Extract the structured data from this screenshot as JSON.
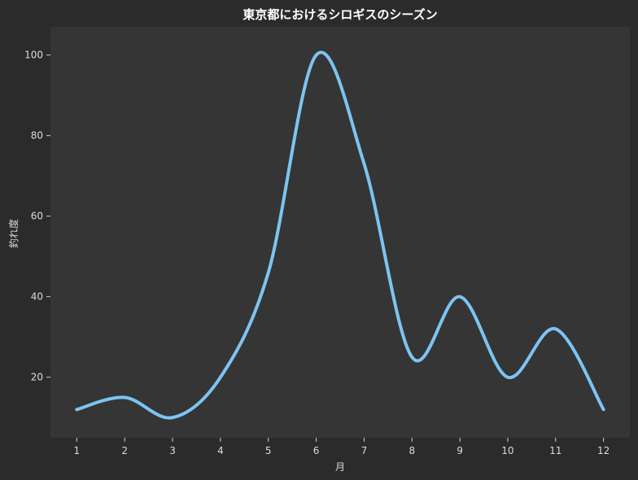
{
  "chart_data": {
    "type": "line",
    "title": "東京都におけるシロギスのシーズン",
    "xlabel": "月",
    "ylabel": "釣れ度",
    "x": [
      1,
      2,
      3,
      4,
      5,
      6,
      7,
      8,
      9,
      10,
      11,
      12
    ],
    "series": [
      {
        "values": [
          12,
          15,
          10,
          20,
          46,
          100,
          73,
          25,
          40,
          20,
          32,
          12
        ],
        "color": "#7cc4f2"
      }
    ],
    "xlim": [
      0.45,
      12.55
    ],
    "ylim": [
      5,
      107
    ],
    "yticks": [
      20,
      40,
      60,
      80,
      100
    ],
    "xticks": [
      1,
      2,
      3,
      4,
      5,
      6,
      7,
      8,
      9,
      10,
      11,
      12
    ],
    "grid": false,
    "legend": "none",
    "colors": {
      "background": "#2b2b2b",
      "plot_area": "#353535",
      "text": "#dcdcdc",
      "line": "#7cc4f2"
    }
  }
}
